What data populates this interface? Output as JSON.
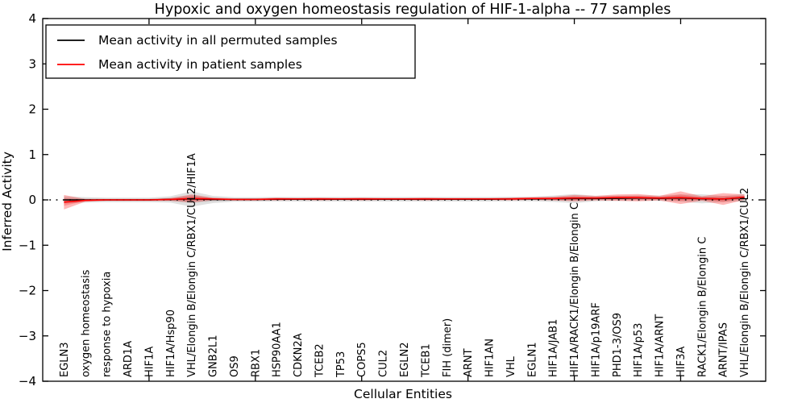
{
  "chart_data": {
    "type": "line",
    "title": "Hypoxic and oxygen homeostasis regulation of HIF-1-alpha -- 77 samples",
    "xlabel": "Cellular Entities",
    "ylabel": "Inferred Activity",
    "ylim": [
      -4,
      4
    ],
    "yticks": [
      -4,
      -3,
      -2,
      -1,
      0,
      1,
      2,
      3,
      4
    ],
    "xticks": [
      5,
      10,
      15,
      20,
      25,
      30
    ],
    "xlim": [
      0,
      34
    ],
    "grid": false,
    "zero_reference_line": {
      "y": 0,
      "style": "dotted",
      "color": "#000000"
    },
    "legend_position": "upper left",
    "categories": [
      "EGLN3",
      "oxygen homeostasis",
      "response to hypoxia",
      "ARD1A",
      "HIF1A",
      "HIF1A/Hsp90",
      "VHL/Elongin B/Elongin C/RBX1/CUL2/HIF1A",
      "GNB2L1",
      "OS9",
      "RBX1",
      "HSP90AA1",
      "CDKN2A",
      "TCEB2",
      "TP53",
      "COPS5",
      "CUL2",
      "EGLN2",
      "TCEB1",
      "FIH (dimer)",
      "ARNT",
      "HIF1AN",
      "VHL",
      "EGLN1",
      "HIF1A/JAB1",
      "HIF1A/RACK1/Elongin B/Elongin C",
      "HIF1A/p19ARF",
      "PHD1-3/OS9",
      "HIF1A/p53",
      "HIF1A/ARNT",
      "HIF3A",
      "RACK1/Elongin B/Elongin C",
      "ARNT/IPAS",
      "VHL/Elongin B/Elongin C/RBX1/CUL2"
    ],
    "series": [
      {
        "name": "Mean activity in all permuted samples",
        "color": "#000000",
        "band_color": "#000000",
        "band_opacity": 0.12,
        "mean": [
          0.0,
          0.0,
          0.0,
          0.0,
          0.0,
          0.01,
          0.02,
          0.01,
          0.01,
          0.01,
          0.015,
          0.015,
          0.015,
          0.015,
          0.015,
          0.015,
          0.015,
          0.015,
          0.015,
          0.015,
          0.015,
          0.02,
          0.02,
          0.025,
          0.03,
          0.03,
          0.035,
          0.04,
          0.035,
          0.04,
          0.025,
          0.02,
          0.05
        ],
        "band": [
          0.08,
          0.06,
          0.05,
          0.05,
          0.05,
          0.07,
          0.17,
          0.08,
          0.05,
          0.05,
          0.05,
          0.05,
          0.05,
          0.05,
          0.05,
          0.05,
          0.05,
          0.05,
          0.05,
          0.05,
          0.05,
          0.05,
          0.05,
          0.07,
          0.1,
          0.06,
          0.06,
          0.06,
          0.06,
          0.08,
          0.1,
          0.07,
          0.08
        ]
      },
      {
        "name": "Mean activity in patient samples",
        "color": "#ff0000",
        "band_color": "#ff0000",
        "band_opacity": 0.28,
        "mean": [
          -0.05,
          -0.01,
          0.0,
          0.0,
          0.0,
          0.01,
          0.03,
          0.02,
          0.01,
          0.01,
          0.02,
          0.02,
          0.02,
          0.02,
          0.02,
          0.02,
          0.02,
          0.02,
          0.02,
          0.02,
          0.02,
          0.02,
          0.03,
          0.03,
          0.04,
          0.04,
          0.05,
          0.05,
          0.04,
          0.05,
          0.03,
          0.02,
          0.06
        ],
        "band": [
          0.16,
          0.03,
          0.02,
          0.02,
          0.02,
          0.03,
          0.09,
          0.03,
          0.02,
          0.02,
          0.03,
          0.02,
          0.03,
          0.02,
          0.03,
          0.02,
          0.02,
          0.03,
          0.02,
          0.02,
          0.02,
          0.03,
          0.03,
          0.04,
          0.07,
          0.05,
          0.07,
          0.08,
          0.05,
          0.14,
          0.05,
          0.13,
          0.06
        ]
      }
    ]
  },
  "colors": {
    "background": "#ffffff",
    "axis": "#000000",
    "permuted_line": "#000000",
    "patient_line": "#ff0000"
  }
}
